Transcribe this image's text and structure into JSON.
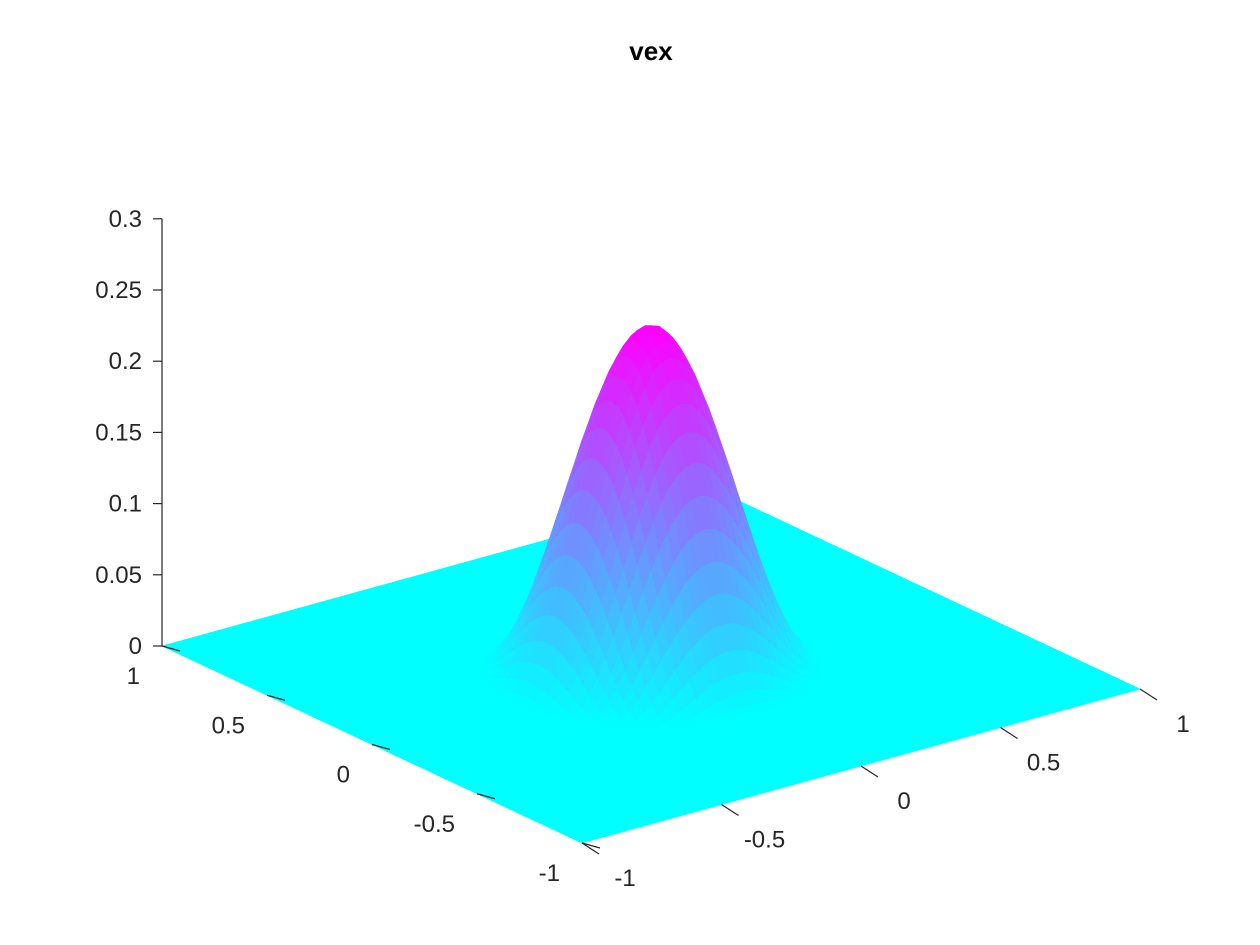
{
  "chart_data": {
    "type": "surface",
    "title": "vex",
    "colormap": [
      "#00ffff",
      "#ff00ff"
    ],
    "xlim": [
      -1,
      1
    ],
    "ylim": [
      -1,
      1
    ],
    "zlim": [
      0,
      0.3
    ],
    "x_ticks": [
      -1,
      -0.5,
      0,
      0.5,
      1
    ],
    "x_tick_labels": [
      "-1",
      "-0.5",
      "0",
      "0.5",
      "1"
    ],
    "y_ticks": [
      -1,
      -0.5,
      0,
      0.5,
      1
    ],
    "y_tick_labels": [
      "-1",
      "-0.5",
      "0",
      "0.5",
      "1"
    ],
    "z_ticks": [
      0,
      0.05,
      0.1,
      0.15,
      0.2,
      0.25,
      0.3
    ],
    "z_tick_labels": [
      "0",
      "0.05",
      "0.1",
      "0.15",
      "0.2",
      "0.25",
      "0.3"
    ],
    "peak": {
      "x": 0,
      "y": 0,
      "z": 0.24
    },
    "support_radius": 0.5,
    "grid": false
  }
}
